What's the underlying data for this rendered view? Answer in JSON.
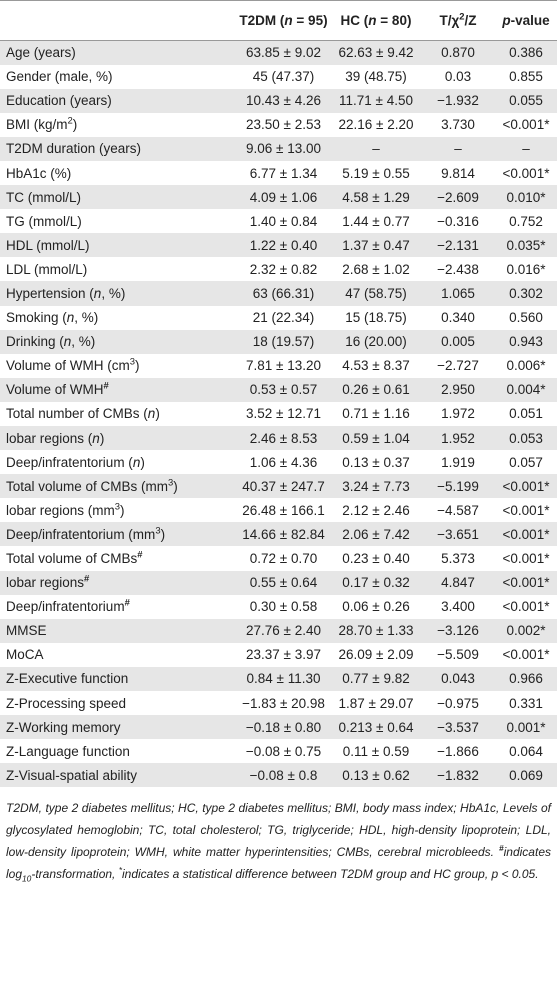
{
  "table": {
    "columns": [
      [
        "T2DM (",
        [
          "n",
          "i"
        ],
        " = 95)"
      ],
      [
        "HC (",
        [
          "n",
          "i"
        ],
        " = 80)"
      ],
      [
        "T/χ",
        [
          "2",
          "sup"
        ],
        "/Z"
      ],
      [
        [
          "p",
          "i"
        ],
        "-value"
      ]
    ],
    "rows": [
      [
        "Age (years)",
        "63.85 ± 9.02",
        "62.63 ± 9.42",
        "0.870",
        "0.386"
      ],
      [
        "Gender (male, %)",
        "45 (47.37)",
        "39 (48.75)",
        "0.03",
        "0.855"
      ],
      [
        "Education (years)",
        "10.43 ± 4.26",
        "11.71 ± 4.50",
        "−1.932",
        "0.055"
      ],
      [
        [
          "BMI (kg/m",
          [
            "2",
            "sup"
          ],
          ")"
        ],
        "23.50 ± 2.53",
        "22.16 ± 2.20",
        "3.730",
        "<0.001*"
      ],
      [
        "T2DM duration (years)",
        "9.06 ± 13.00",
        "–",
        "–",
        "–"
      ],
      [
        "HbA1c (%)",
        "6.77 ± 1.34",
        "5.19 ± 0.55",
        "9.814",
        "<0.001*"
      ],
      [
        "TC (mmol/L)",
        "4.09 ± 1.06",
        "4.58 ± 1.29",
        "−2.609",
        "0.010*"
      ],
      [
        "TG (mmol/L)",
        "1.40 ± 0.84",
        "1.44 ± 0.77",
        "−0.316",
        "0.752"
      ],
      [
        "HDL (mmol/L)",
        "1.22 ± 0.40",
        "1.37 ± 0.47",
        "−2.131",
        "0.035*"
      ],
      [
        "LDL (mmol/L)",
        "2.32 ± 0.82",
        "2.68 ± 1.02",
        "−2.438",
        "0.016*"
      ],
      [
        [
          "Hypertension (",
          [
            "n",
            "i"
          ],
          ", %)"
        ],
        "63 (66.31)",
        "47 (58.75)",
        "1.065",
        "0.302"
      ],
      [
        [
          "Smoking (",
          [
            "n",
            "i"
          ],
          ", %)"
        ],
        "21 (22.34)",
        "15 (18.75)",
        "0.340",
        "0.560"
      ],
      [
        [
          "Drinking (",
          [
            "n",
            "i"
          ],
          ", %)"
        ],
        "18 (19.57)",
        "16 (20.00)",
        "0.005",
        "0.943"
      ],
      [
        [
          "Volume of WMH (cm",
          [
            "3",
            "sup"
          ],
          ")"
        ],
        "7.81 ± 13.20",
        "4.53 ± 8.37",
        "−2.727",
        "0.006*"
      ],
      [
        [
          "Volume of WMH",
          [
            "#",
            "supb"
          ]
        ],
        "0.53 ± 0.57",
        "0.26 ± 0.61",
        "2.950",
        "0.004*"
      ],
      [
        [
          "Total number of CMBs (",
          [
            "n",
            "i"
          ],
          ")"
        ],
        "3.52 ± 12.71",
        "0.71 ± 1.16",
        "1.972",
        "0.051"
      ],
      [
        [
          "lobar regions (",
          [
            "n",
            "i"
          ],
          ")"
        ],
        "2.46 ± 8.53",
        "0.59 ± 1.04",
        "1.952",
        "0.053"
      ],
      [
        [
          "Deep/infratentorium (",
          [
            "n",
            "i"
          ],
          ")"
        ],
        "1.06 ± 4.36",
        "0.13 ± 0.37",
        "1.919",
        "0.057"
      ],
      [
        [
          "Total volume of CMBs (mm",
          [
            "3",
            "sup"
          ],
          ")"
        ],
        "40.37 ± 247.7",
        "3.24 ± 7.73",
        "−5.199",
        "<0.001*"
      ],
      [
        [
          "lobar regions (mm",
          [
            "3",
            "sup"
          ],
          ")"
        ],
        "26.48 ± 166.1",
        "2.12 ± 2.46",
        "−4.587",
        "<0.001*"
      ],
      [
        [
          "Deep/infratentorium (mm",
          [
            "3",
            "sup"
          ],
          ")"
        ],
        "14.66 ± 82.84",
        "2.06 ± 7.42",
        "−3.651",
        "<0.001*"
      ],
      [
        [
          "Total volume of CMBs",
          [
            "#",
            "supb"
          ]
        ],
        "0.72 ± 0.70",
        "0.23 ± 0.40",
        "5.373",
        "<0.001*"
      ],
      [
        [
          "lobar regions",
          [
            "#",
            "supb"
          ]
        ],
        "0.55 ± 0.64",
        "0.17 ± 0.32",
        "4.847",
        "<0.001*"
      ],
      [
        [
          "Deep/infratentorium",
          [
            "#",
            "supb"
          ]
        ],
        "0.30 ± 0.58",
        "0.06 ± 0.26",
        "3.400",
        "<0.001*"
      ],
      [
        "MMSE",
        "27.76 ± 2.40",
        "28.70 ± 1.33",
        "−3.126",
        "0.002*"
      ],
      [
        "MoCA",
        "23.37 ± 3.97",
        "26.09 ± 2.09",
        "−5.509",
        "<0.001*"
      ],
      [
        "Z-Executive function",
        "0.84 ± 11.30",
        "0.77 ± 9.82",
        "0.043",
        "0.966"
      ],
      [
        "Z-Processing speed",
        "−1.83 ± 20.98",
        "1.87 ± 29.07",
        "−0.975",
        "0.331"
      ],
      [
        "Z-Working memory",
        "−0.18 ± 0.80",
        "0.213 ± 0.64",
        "−3.537",
        "0.001*"
      ],
      [
        "Z-Language function",
        "−0.08 ± 0.75",
        "0.11 ± 0.59",
        "−1.866",
        "0.064"
      ],
      [
        "Z-Visual-spatial ability",
        "−0.08 ± 0.8",
        "0.13 ± 0.62",
        "−1.832",
        "0.069"
      ]
    ]
  },
  "footnote": [
    "T2DM, type 2 diabetes mellitus; HC, type 2 diabetes mellitus; BMI, body mass index; HbA1c, Levels of glycosylated hemoglobin; TC, total cholesterol; TG, triglyceride; HDL, high-density lipoprotein; LDL, low-density lipoprotein; WMH, white matter hyperintensities; CMBs, cerebral microbleeds. ",
    [
      "#",
      "supb"
    ],
    "indicates log",
    [
      "10",
      "sub"
    ],
    "-transformation, ",
    [
      "*",
      "sup"
    ],
    "indicates a statistical difference between T2DM group and HC group, p < 0.05."
  ]
}
